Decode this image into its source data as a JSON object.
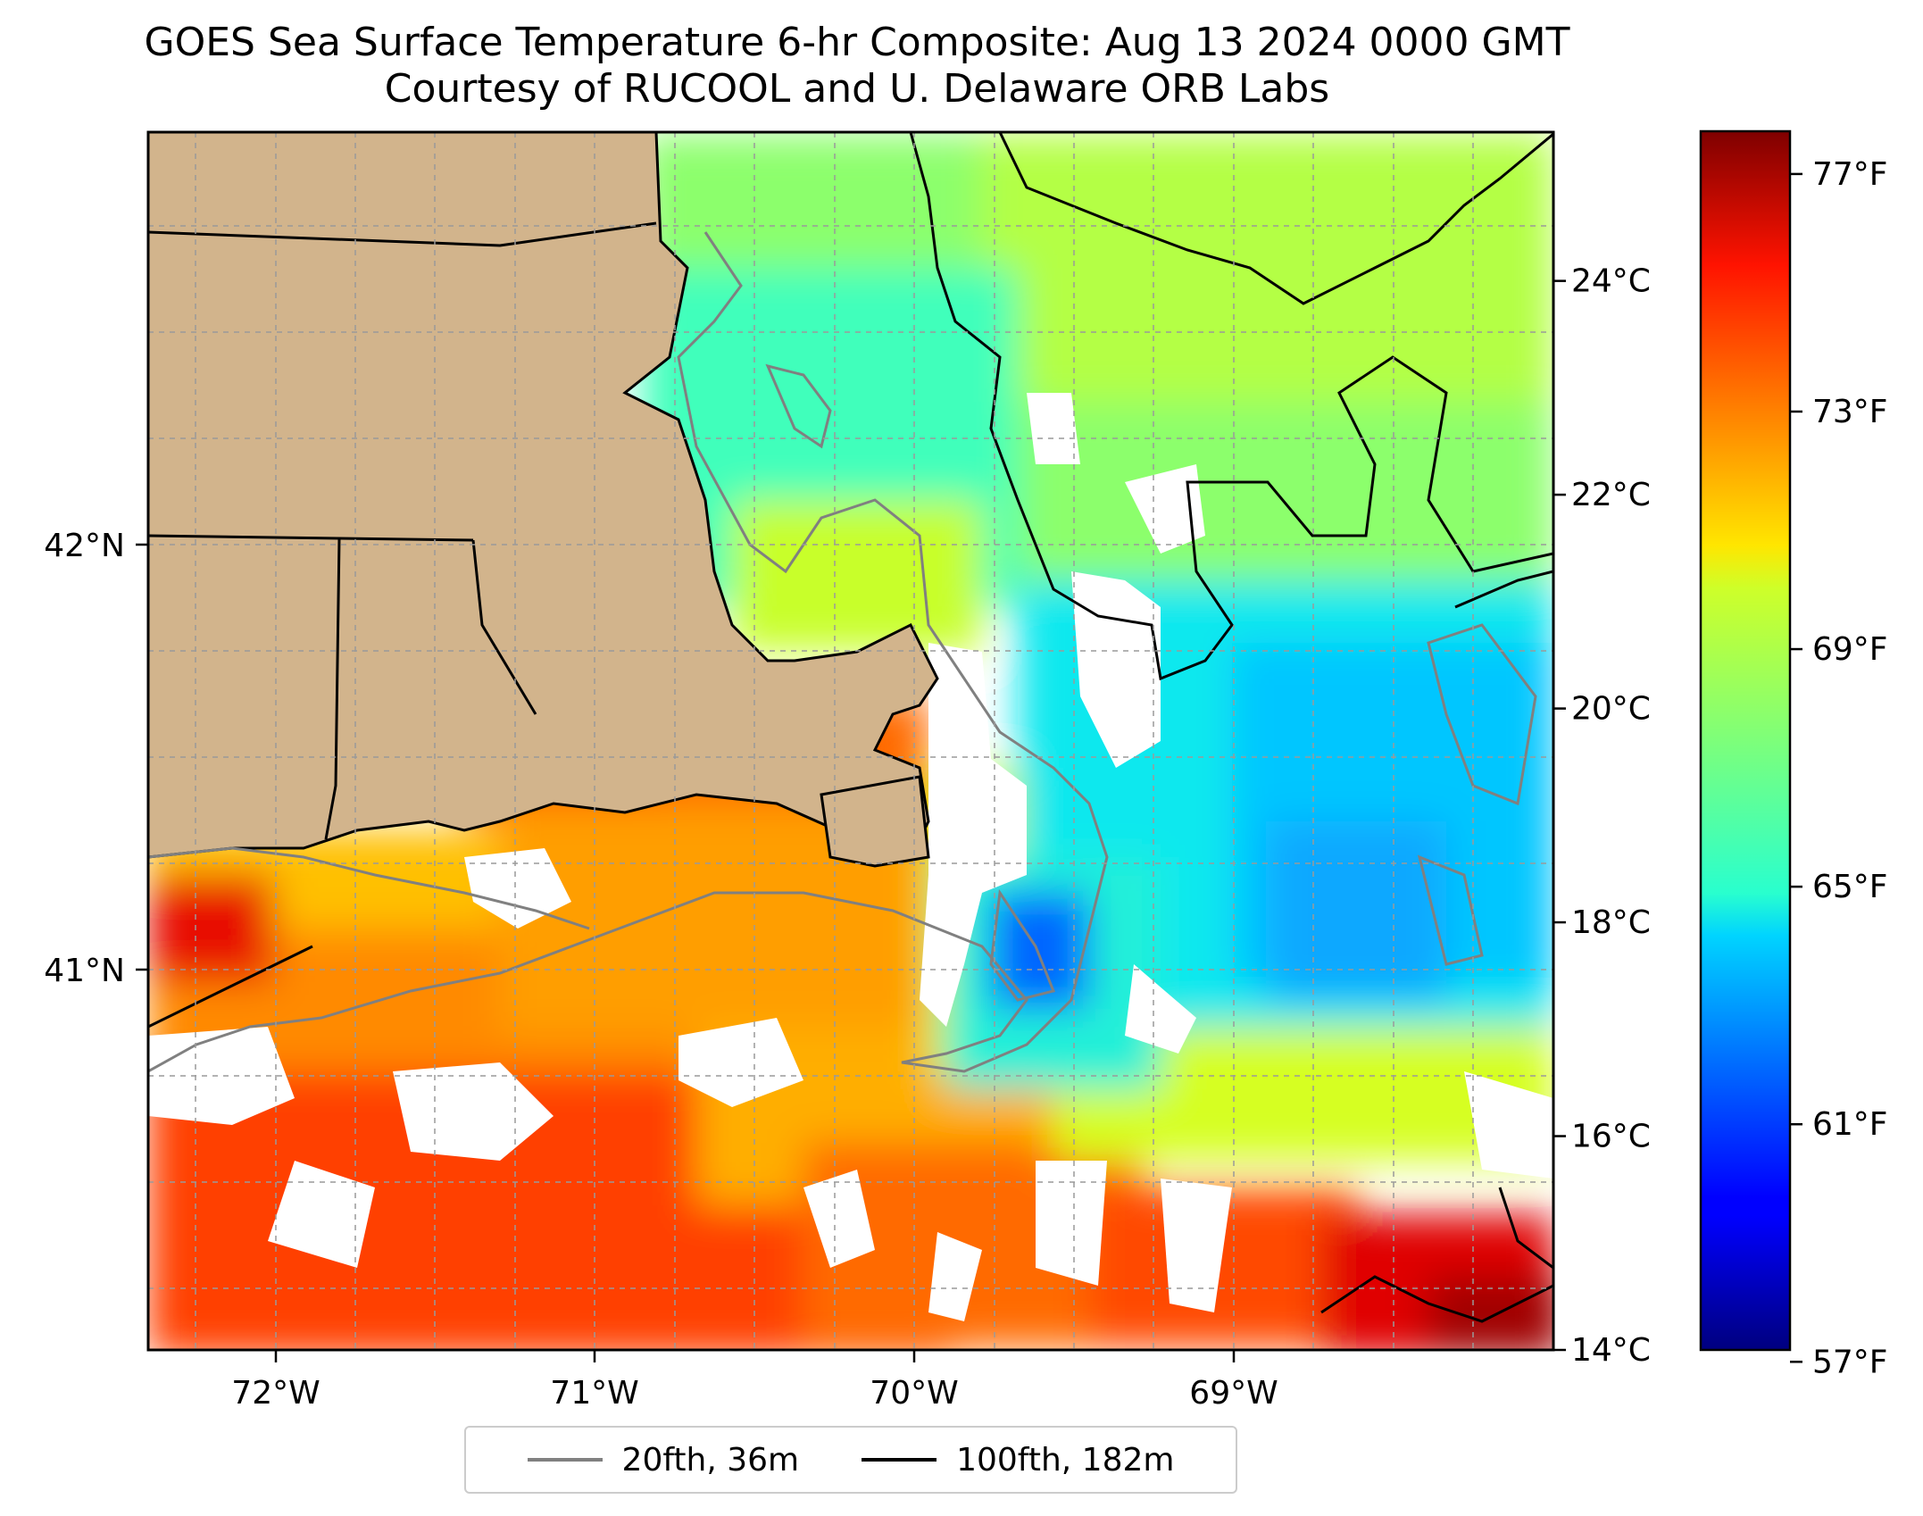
{
  "title": {
    "line1": "GOES Sea Surface Temperature 6-hr Composite: Aug 13 2024 0000 GMT",
    "line2": "Courtesy of RUCOOL and U. Delaware ORB Labs"
  },
  "map": {
    "lon_range": [
      -72.42,
      -68.02
    ],
    "lat_range": [
      40.14,
      43.0
    ],
    "lon_ticks": [
      {
        "value": -72,
        "label": "72°W"
      },
      {
        "value": -71,
        "label": "71°W"
      },
      {
        "value": -70,
        "label": "70°W"
      },
      {
        "value": -69,
        "label": "69°W"
      }
    ],
    "lat_ticks": [
      {
        "value": 42,
        "label": "42°N"
      },
      {
        "value": 41,
        "label": "41°N"
      }
    ],
    "gridlines": true,
    "land_color": "#d2b48c",
    "no_data_color": "#ffffff"
  },
  "colorbar": {
    "colormap": "jet",
    "celsius_range": [
      14,
      25.4
    ],
    "celsius_ticks": [
      {
        "value": 14,
        "label": "14°C"
      },
      {
        "value": 16,
        "label": "16°C"
      },
      {
        "value": 18,
        "label": "18°C"
      },
      {
        "value": 20,
        "label": "20°C"
      },
      {
        "value": 22,
        "label": "22°C"
      },
      {
        "value": 24,
        "label": "24°C"
      }
    ],
    "fahrenheit_ticks": [
      {
        "value": 57,
        "label": "57°F"
      },
      {
        "value": 61,
        "label": "61°F"
      },
      {
        "value": 65,
        "label": "65°F"
      },
      {
        "value": 69,
        "label": "69°F"
      },
      {
        "value": 73,
        "label": "73°F"
      },
      {
        "value": 77,
        "label": "77°F"
      }
    ]
  },
  "legend": {
    "position": "bottom-center",
    "items": [
      {
        "label": "20fth, 36m",
        "color": "#808080"
      },
      {
        "label": "100fth, 182m",
        "color": "#000000"
      }
    ]
  }
}
